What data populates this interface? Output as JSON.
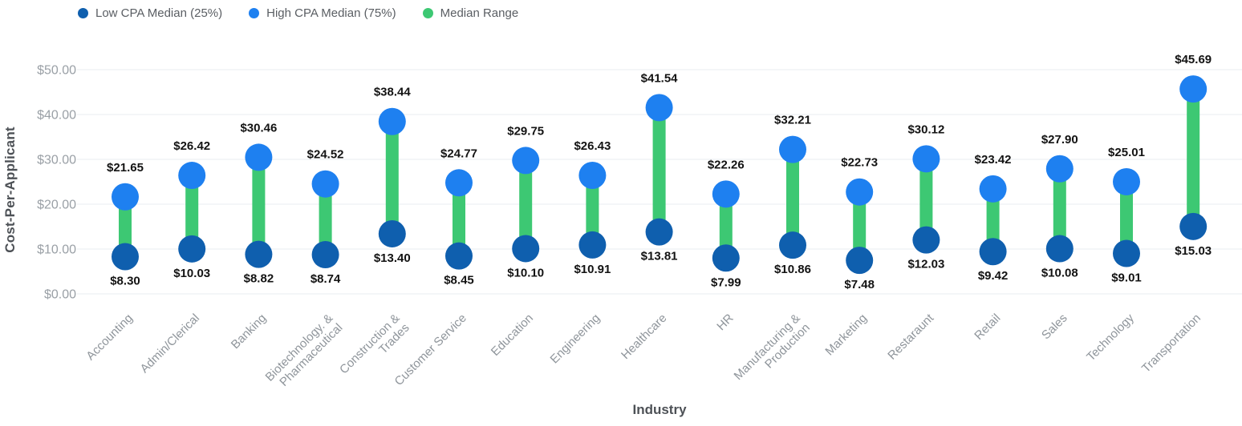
{
  "legend": {
    "items": [
      {
        "label": "Low CPA Median (25%)",
        "color": "#0F5FAE"
      },
      {
        "label": "High CPA Median (75%)",
        "color": "#1E80F0"
      },
      {
        "label": "Median Range",
        "color": "#3DC873"
      }
    ]
  },
  "axes": {
    "y_title": "Cost-Per-Applicant",
    "x_title": "Industry",
    "y_ticks": [
      "$0.00",
      "$10.00",
      "$20.00",
      "$30.00",
      "$40.00",
      "$50.00"
    ]
  },
  "chart_data": {
    "type": "bar",
    "variant": "dumbbell-range",
    "title": "",
    "xlabel": "Industry",
    "ylabel": "Cost-Per-Applicant",
    "ylim": [
      0,
      50
    ],
    "grid": true,
    "legend_position": "top-left",
    "value_prefix": "$",
    "categories": [
      "Accounting",
      "Admin/Clerical",
      "Banking",
      "Biotechnology. & Pharmaceutical",
      "Construction & Trades",
      "Customer Service",
      "Education",
      "Engineering",
      "Healthcare",
      "HR",
      "Manufacturing & Production",
      "Marketing",
      "Restaraunt",
      "Retail",
      "Sales",
      "Technology",
      "Transportation"
    ],
    "category_label_lines": [
      [
        "Accounting"
      ],
      [
        "Admin/Clerical"
      ],
      [
        "Banking"
      ],
      [
        "Biotechnology. &",
        "Pharmaceutical"
      ],
      [
        "Construction &",
        "Trades"
      ],
      [
        "Customer Service"
      ],
      [
        "Education"
      ],
      [
        "Engineering"
      ],
      [
        "Healthcare"
      ],
      [
        "HR"
      ],
      [
        "Manufacturing &",
        "Production"
      ],
      [
        "Marketing"
      ],
      [
        "Restaraunt"
      ],
      [
        "Retail"
      ],
      [
        "Sales"
      ],
      [
        "Technology"
      ],
      [
        "Transportation"
      ]
    ],
    "series": [
      {
        "name": "Low CPA Median (25%)",
        "role": "low",
        "color": "#0F5FAE",
        "values": [
          8.3,
          10.03,
          8.82,
          8.74,
          13.4,
          8.45,
          10.1,
          10.91,
          13.81,
          7.99,
          10.86,
          7.48,
          12.03,
          9.42,
          10.08,
          9.01,
          15.03
        ]
      },
      {
        "name": "High CPA Median (75%)",
        "role": "high",
        "color": "#1E80F0",
        "values": [
          21.65,
          26.42,
          30.46,
          24.52,
          38.44,
          24.77,
          29.75,
          26.43,
          41.54,
          22.26,
          32.21,
          22.73,
          30.12,
          23.42,
          27.9,
          25.01,
          45.69
        ]
      },
      {
        "name": "Median Range",
        "role": "range",
        "color": "#3DC873"
      }
    ]
  }
}
